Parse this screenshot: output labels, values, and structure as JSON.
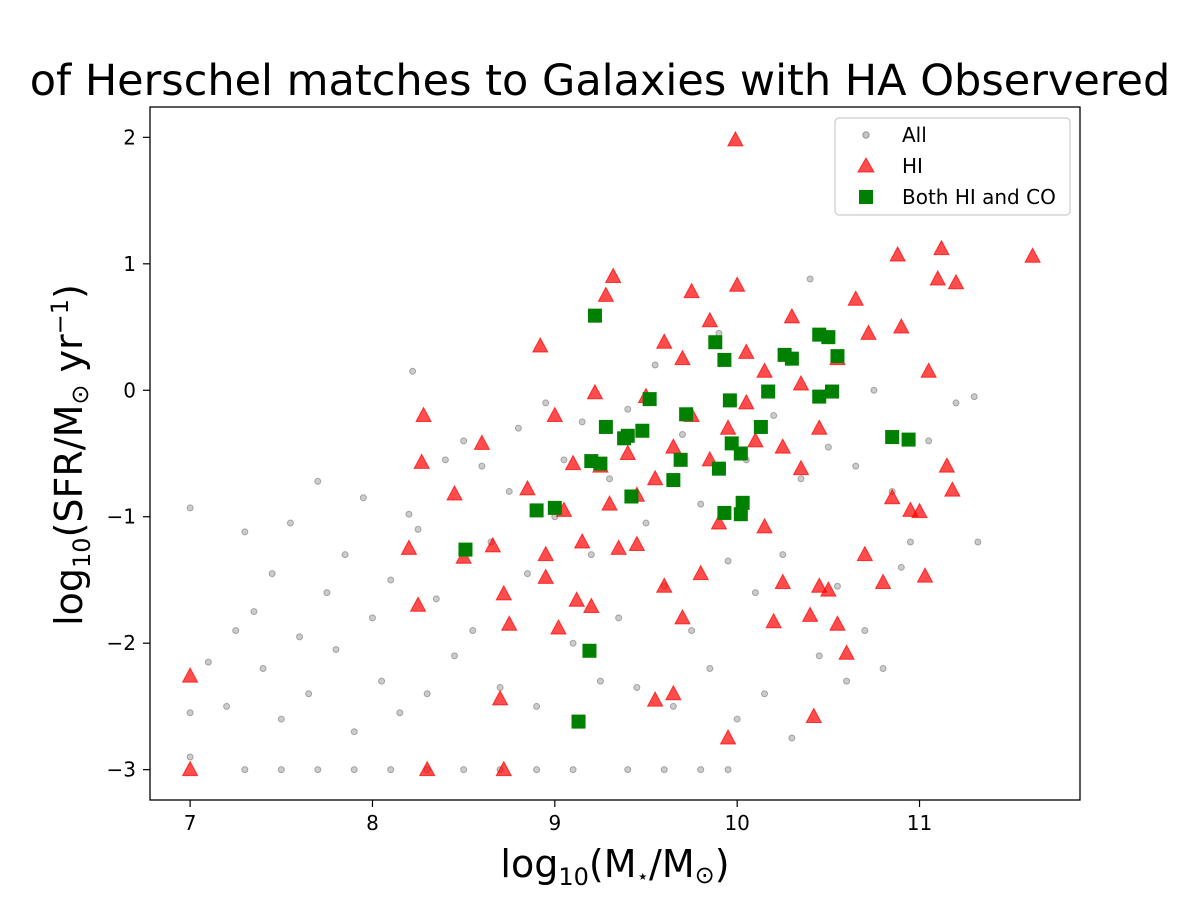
{
  "colors": {
    "all": "#555555",
    "hi": "#ff0000",
    "both": "#008000",
    "frame": "#000000"
  },
  "chart_data": {
    "type": "scatter",
    "title": "of Herschel matches to Galaxies with HA Observered",
    "xlabel": {
      "base": "log",
      "sub": "10",
      "text": "(M",
      "sub2": "⋆",
      "mid": "/M",
      "sub3": "⊙",
      "tail": ")"
    },
    "ylabel": {
      "base": "log",
      "sub": "10",
      "text": "(SFR/M",
      "sub2": "⊙",
      "mid": " yr",
      "sup": "−1",
      "tail": ")"
    },
    "xlim": [
      6.78,
      11.88
    ],
    "ylim": [
      -3.24,
      2.24
    ],
    "xticks": [
      7,
      8,
      9,
      10,
      11
    ],
    "yticks": [
      2,
      1,
      0,
      -1,
      -2,
      -3
    ],
    "xtick_labels": [
      "7",
      "8",
      "9",
      "10",
      "11"
    ],
    "ytick_labels": [
      "2",
      "1",
      "0",
      "−1",
      "−2",
      "−3"
    ],
    "legend": {
      "position": "upper-right",
      "labels": [
        "All",
        "HI",
        "Both HI and CO"
      ]
    },
    "series": [
      {
        "name": "All",
        "marker": "circle",
        "points": [
          [
            7.0,
            -0.93
          ],
          [
            7.0,
            -2.55
          ],
          [
            7.0,
            -2.9
          ],
          [
            7.1,
            -2.15
          ],
          [
            7.2,
            -2.5
          ],
          [
            7.25,
            -1.9
          ],
          [
            7.3,
            -1.12
          ],
          [
            7.35,
            -1.75
          ],
          [
            7.4,
            -2.2
          ],
          [
            7.45,
            -1.45
          ],
          [
            7.5,
            -2.6
          ],
          [
            7.55,
            -1.05
          ],
          [
            7.6,
            -1.95
          ],
          [
            7.65,
            -2.4
          ],
          [
            7.7,
            -0.72
          ],
          [
            7.75,
            -1.6
          ],
          [
            7.8,
            -2.05
          ],
          [
            7.85,
            -1.3
          ],
          [
            7.9,
            -2.7
          ],
          [
            7.95,
            -0.85
          ],
          [
            8.0,
            -1.8
          ],
          [
            8.05,
            -2.3
          ],
          [
            8.1,
            -1.5
          ],
          [
            8.15,
            -2.55
          ],
          [
            8.2,
            -0.98
          ],
          [
            8.22,
            0.15
          ],
          [
            8.25,
            -1.1
          ],
          [
            8.3,
            -2.4
          ],
          [
            8.35,
            -1.65
          ],
          [
            8.4,
            -0.55
          ],
          [
            8.45,
            -2.1
          ],
          [
            8.5,
            -0.4
          ],
          [
            8.55,
            -1.9
          ],
          [
            8.6,
            -0.6
          ],
          [
            8.65,
            -1.2
          ],
          [
            8.7,
            -2.35
          ],
          [
            8.75,
            -0.8
          ],
          [
            8.8,
            -0.3
          ],
          [
            8.85,
            -1.45
          ],
          [
            8.9,
            -2.5
          ],
          [
            8.95,
            -0.1
          ],
          [
            9.0,
            -1.0
          ],
          [
            9.05,
            -0.55
          ],
          [
            9.1,
            -2.0
          ],
          [
            9.15,
            -0.25
          ],
          [
            9.2,
            -1.3
          ],
          [
            9.25,
            -2.3
          ],
          [
            9.3,
            -0.7
          ],
          [
            9.35,
            -1.8
          ],
          [
            9.4,
            -0.15
          ],
          [
            9.45,
            -2.35
          ],
          [
            9.5,
            -1.05
          ],
          [
            9.55,
            0.2
          ],
          [
            9.6,
            -1.55
          ],
          [
            9.65,
            -2.5
          ],
          [
            9.7,
            -0.35
          ],
          [
            9.75,
            -1.9
          ],
          [
            9.8,
            -0.9
          ],
          [
            9.85,
            -2.2
          ],
          [
            9.9,
            0.45
          ],
          [
            9.95,
            -1.35
          ],
          [
            10.0,
            -2.6
          ],
          [
            10.05,
            -0.55
          ],
          [
            10.1,
            -1.6
          ],
          [
            10.15,
            -2.4
          ],
          [
            10.2,
            -0.2
          ],
          [
            10.25,
            -1.3
          ],
          [
            10.3,
            -2.75
          ],
          [
            10.35,
            -0.7
          ],
          [
            10.4,
            0.88
          ],
          [
            10.45,
            -2.1
          ],
          [
            10.5,
            -0.45
          ],
          [
            10.55,
            -1.55
          ],
          [
            10.6,
            -2.3
          ],
          [
            10.65,
            -0.6
          ],
          [
            10.7,
            -1.9
          ],
          [
            10.75,
            0.0
          ],
          [
            10.8,
            -2.2
          ],
          [
            10.85,
            -0.8
          ],
          [
            10.9,
            -1.4
          ],
          [
            10.95,
            -1.2
          ],
          [
            11.05,
            -0.4
          ],
          [
            11.2,
            -0.1
          ],
          [
            11.3,
            -0.05
          ],
          [
            11.32,
            -1.2
          ],
          [
            7.3,
            -3.0
          ],
          [
            7.5,
            -3.0
          ],
          [
            7.7,
            -3.0
          ],
          [
            7.9,
            -3.0
          ],
          [
            8.1,
            -3.0
          ],
          [
            8.3,
            -3.0
          ],
          [
            8.5,
            -3.0
          ],
          [
            8.7,
            -3.0
          ],
          [
            8.9,
            -3.0
          ],
          [
            9.1,
            -3.0
          ],
          [
            9.4,
            -3.0
          ],
          [
            9.6,
            -3.0
          ],
          [
            9.8,
            -3.0
          ],
          [
            9.95,
            -3.0
          ]
        ]
      },
      {
        "name": "HI",
        "marker": "triangle",
        "points": [
          [
            7.0,
            -2.26
          ],
          [
            7.0,
            -3.0
          ],
          [
            8.2,
            -1.25
          ],
          [
            8.25,
            -1.7
          ],
          [
            8.28,
            -0.2
          ],
          [
            8.3,
            -3.0
          ],
          [
            8.27,
            -0.57
          ],
          [
            8.45,
            -0.82
          ],
          [
            8.5,
            -1.32
          ],
          [
            8.6,
            -0.42
          ],
          [
            8.66,
            -1.23
          ],
          [
            8.7,
            -2.44
          ],
          [
            8.72,
            -1.61
          ],
          [
            8.75,
            -1.85
          ],
          [
            8.72,
            -3.0
          ],
          [
            8.92,
            0.35
          ],
          [
            8.95,
            -1.48
          ],
          [
            9.0,
            -0.2
          ],
          [
            9.02,
            -1.88
          ],
          [
            9.1,
            -0.58
          ],
          [
            9.12,
            -1.66
          ],
          [
            9.2,
            -1.71
          ],
          [
            9.22,
            -0.02
          ],
          [
            9.28,
            0.75
          ],
          [
            9.32,
            0.9
          ],
          [
            9.35,
            -1.25
          ],
          [
            9.4,
            -0.5
          ],
          [
            9.45,
            -0.83
          ],
          [
            9.5,
            -0.05
          ],
          [
            9.55,
            -2.45
          ],
          [
            9.6,
            -1.55
          ],
          [
            9.65,
            -2.4
          ],
          [
            9.7,
            -1.8
          ],
          [
            9.75,
            0.78
          ],
          [
            9.8,
            -1.45
          ],
          [
            9.85,
            0.55
          ],
          [
            9.9,
            -1.05
          ],
          [
            9.95,
            -2.75
          ],
          [
            9.99,
            1.98
          ],
          [
            10.0,
            0.83
          ],
          [
            10.05,
            0.3
          ],
          [
            10.1,
            -0.4
          ],
          [
            10.15,
            -1.08
          ],
          [
            10.2,
            -1.83
          ],
          [
            10.25,
            -1.52
          ],
          [
            10.3,
            0.58
          ],
          [
            10.35,
            -0.62
          ],
          [
            10.4,
            -1.78
          ],
          [
            10.42,
            -2.58
          ],
          [
            10.45,
            -1.55
          ],
          [
            10.5,
            -1.58
          ],
          [
            10.55,
            -1.85
          ],
          [
            10.6,
            -2.08
          ],
          [
            10.65,
            0.72
          ],
          [
            10.7,
            -1.3
          ],
          [
            10.72,
            0.45
          ],
          [
            10.8,
            -1.52
          ],
          [
            10.85,
            -0.85
          ],
          [
            10.88,
            1.07
          ],
          [
            10.9,
            0.5
          ],
          [
            10.95,
            -0.95
          ],
          [
            11.0,
            -0.96
          ],
          [
            11.03,
            -1.47
          ],
          [
            11.05,
            0.15
          ],
          [
            11.1,
            0.88
          ],
          [
            11.12,
            1.12
          ],
          [
            11.15,
            -0.6
          ],
          [
            11.18,
            -0.79
          ],
          [
            11.2,
            0.85
          ],
          [
            11.62,
            1.06
          ],
          [
            9.15,
            -1.2
          ],
          [
            9.25,
            -0.6
          ],
          [
            9.3,
            -0.9
          ],
          [
            9.45,
            -1.22
          ],
          [
            9.55,
            -0.7
          ],
          [
            9.65,
            -0.45
          ],
          [
            9.75,
            -0.2
          ],
          [
            9.85,
            -0.55
          ],
          [
            9.95,
            -0.3
          ],
          [
            10.05,
            -0.1
          ],
          [
            10.15,
            0.15
          ],
          [
            10.25,
            -0.45
          ],
          [
            10.35,
            0.05
          ],
          [
            10.45,
            -0.3
          ],
          [
            10.55,
            0.25
          ],
          [
            9.05,
            -0.95
          ],
          [
            8.85,
            -0.78
          ],
          [
            8.95,
            -1.3
          ],
          [
            9.6,
            0.38
          ],
          [
            9.7,
            0.25
          ]
        ]
      },
      {
        "name": "Both HI and CO",
        "marker": "square",
        "points": [
          [
            8.51,
            -1.26
          ],
          [
            8.9,
            -0.95
          ],
          [
            9.0,
            -0.93
          ],
          [
            9.13,
            -2.62
          ],
          [
            9.19,
            -2.06
          ],
          [
            9.22,
            0.59
          ],
          [
            9.2,
            -0.56
          ],
          [
            9.25,
            -0.58
          ],
          [
            9.28,
            -0.29
          ],
          [
            9.38,
            -0.38
          ],
          [
            9.4,
            -0.36
          ],
          [
            9.42,
            -0.84
          ],
          [
            9.48,
            -0.32
          ],
          [
            9.52,
            -0.07
          ],
          [
            9.65,
            -0.71
          ],
          [
            9.69,
            -0.55
          ],
          [
            9.72,
            -0.19
          ],
          [
            9.88,
            0.38
          ],
          [
            9.9,
            -0.62
          ],
          [
            9.93,
            0.24
          ],
          [
            9.93,
            -0.97
          ],
          [
            9.96,
            -0.08
          ],
          [
            9.97,
            -0.42
          ],
          [
            10.02,
            -0.5
          ],
          [
            10.03,
            -0.89
          ],
          [
            10.02,
            -0.98
          ],
          [
            10.13,
            -0.29
          ],
          [
            10.17,
            -0.01
          ],
          [
            10.26,
            0.28
          ],
          [
            10.3,
            0.25
          ],
          [
            10.45,
            0.44
          ],
          [
            10.5,
            0.42
          ],
          [
            10.45,
            -0.05
          ],
          [
            10.52,
            -0.01
          ],
          [
            10.55,
            0.27
          ],
          [
            10.85,
            -0.37
          ],
          [
            10.94,
            -0.39
          ]
        ]
      }
    ]
  }
}
